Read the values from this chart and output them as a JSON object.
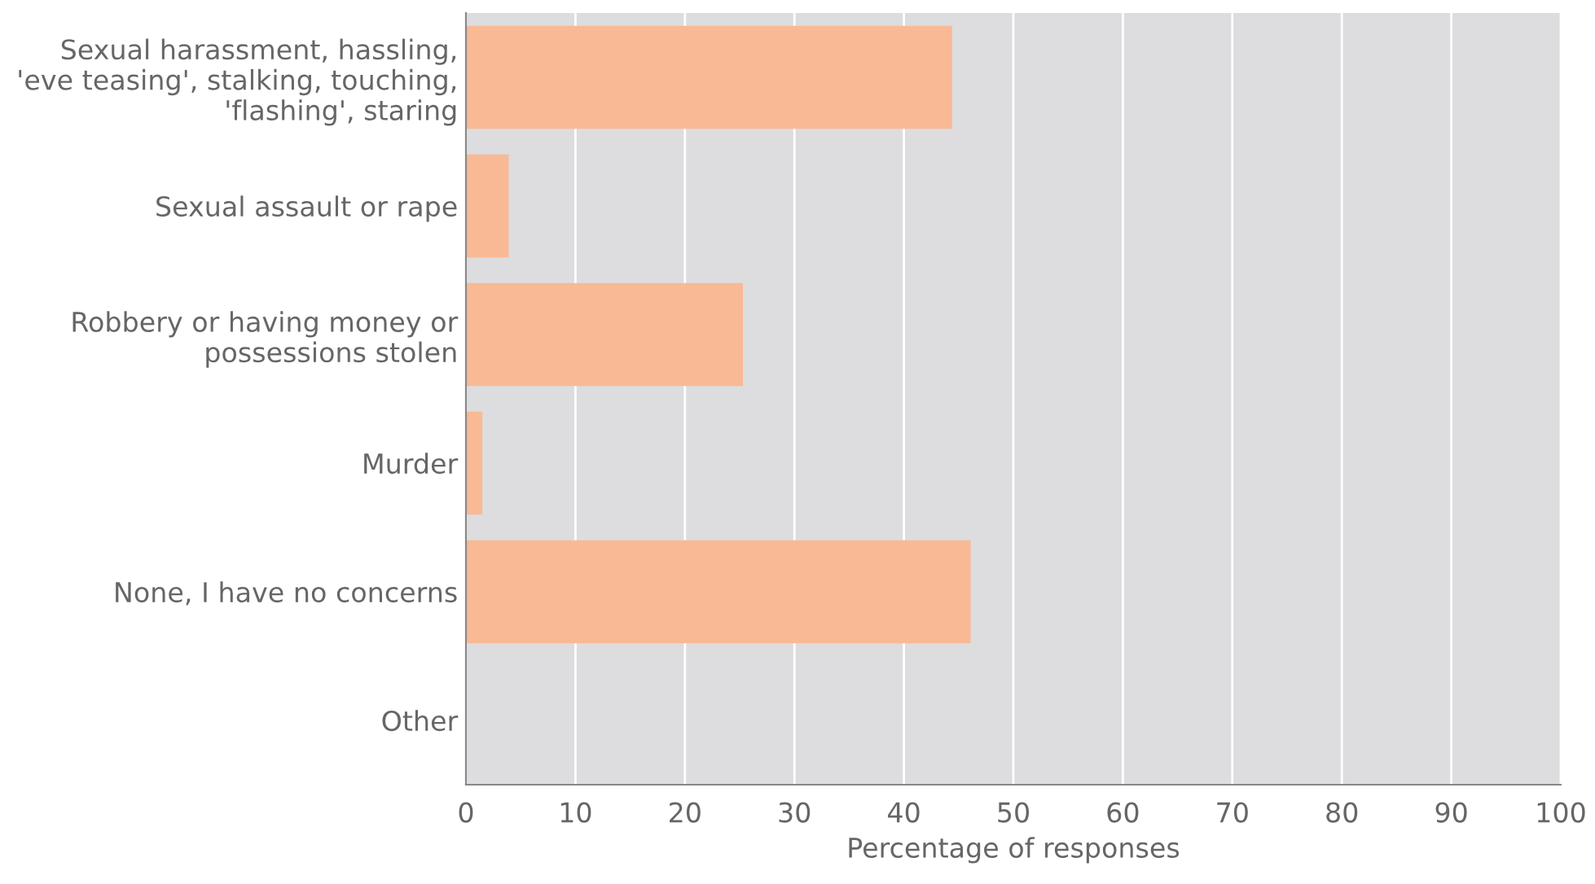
{
  "chart_data": {
    "type": "bar",
    "orientation": "horizontal",
    "xlabel": "Percentage of responses",
    "categories": [
      "Sexual harassment, hassling,\n'eve teasing', stalking, touching,\n'flashing', staring",
      "Sexual assault or rape",
      "Robbery or having money or\npossessions stolen",
      "Murder",
      "None, I have no concerns",
      "Other"
    ],
    "values": [
      44.4,
      3.9,
      25.3,
      1.5,
      46.1,
      0
    ],
    "color": "#f9b995",
    "xlim": [
      0,
      100
    ],
    "xticks": [
      0,
      10,
      20,
      30,
      40,
      50,
      60,
      70,
      80,
      90,
      100
    ],
    "grid": "x"
  }
}
